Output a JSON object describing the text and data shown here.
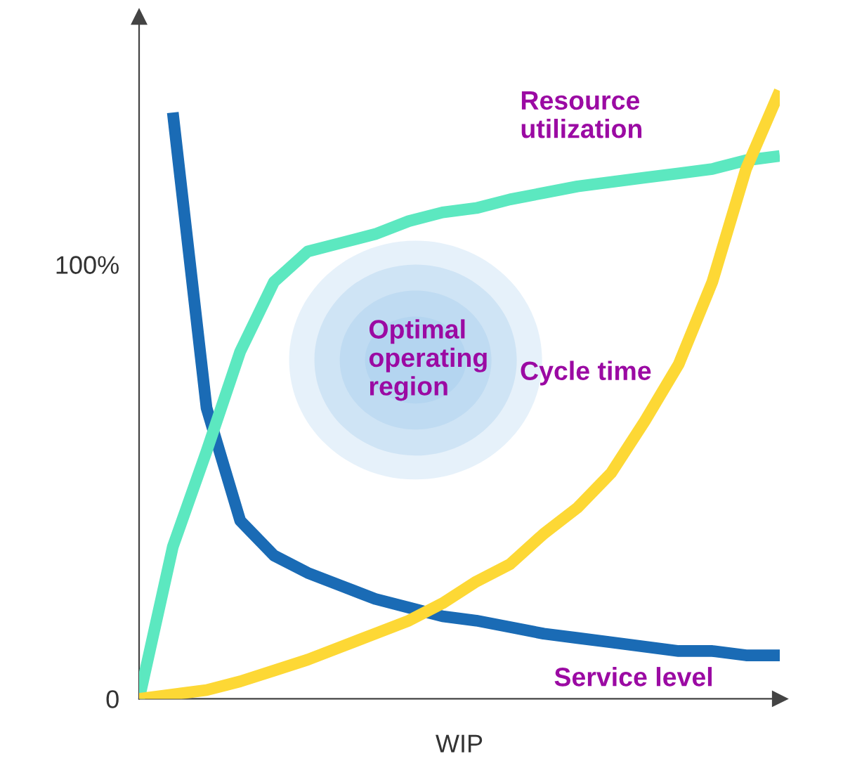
{
  "chart_data": {
    "type": "line",
    "xlabel": "WIP",
    "categories": [
      null,
      null,
      null,
      null,
      null,
      null,
      null,
      null,
      null,
      null,
      null,
      null,
      null,
      null,
      null,
      null,
      null,
      null,
      null,
      null
    ],
    "series": [
      {
        "name": "Service level",
        "color": "#1a6bb5",
        "values": [
          null,
          135,
          67,
          41,
          33,
          29,
          26,
          23,
          21,
          19,
          18,
          16.5,
          15,
          14,
          13,
          12,
          11,
          11,
          10,
          10
        ]
      },
      {
        "name": "Resource utilization",
        "color": "#5ce8c0",
        "values": [
          0,
          35,
          57,
          80,
          96,
          103,
          105,
          107,
          110,
          112,
          113,
          115,
          116.5,
          118,
          119,
          120,
          121,
          122,
          124,
          125
        ]
      },
      {
        "name": "Cycle time",
        "color": "#fdd835",
        "values": [
          0,
          1,
          2,
          4,
          6.5,
          9,
          12,
          15,
          18,
          22,
          27,
          31,
          38,
          44,
          52,
          64,
          77,
          96,
          122,
          140
        ]
      }
    ],
    "ylim": [
      0,
      157
    ],
    "yticks": [
      {
        "value": 0,
        "label": "0"
      },
      {
        "value": 100,
        "label": "100%"
      }
    ],
    "annotations": [
      "Optimal\noperating\nregion"
    ],
    "grid": false,
    "legend": false,
    "marker": "none",
    "line_style": "solid"
  }
}
